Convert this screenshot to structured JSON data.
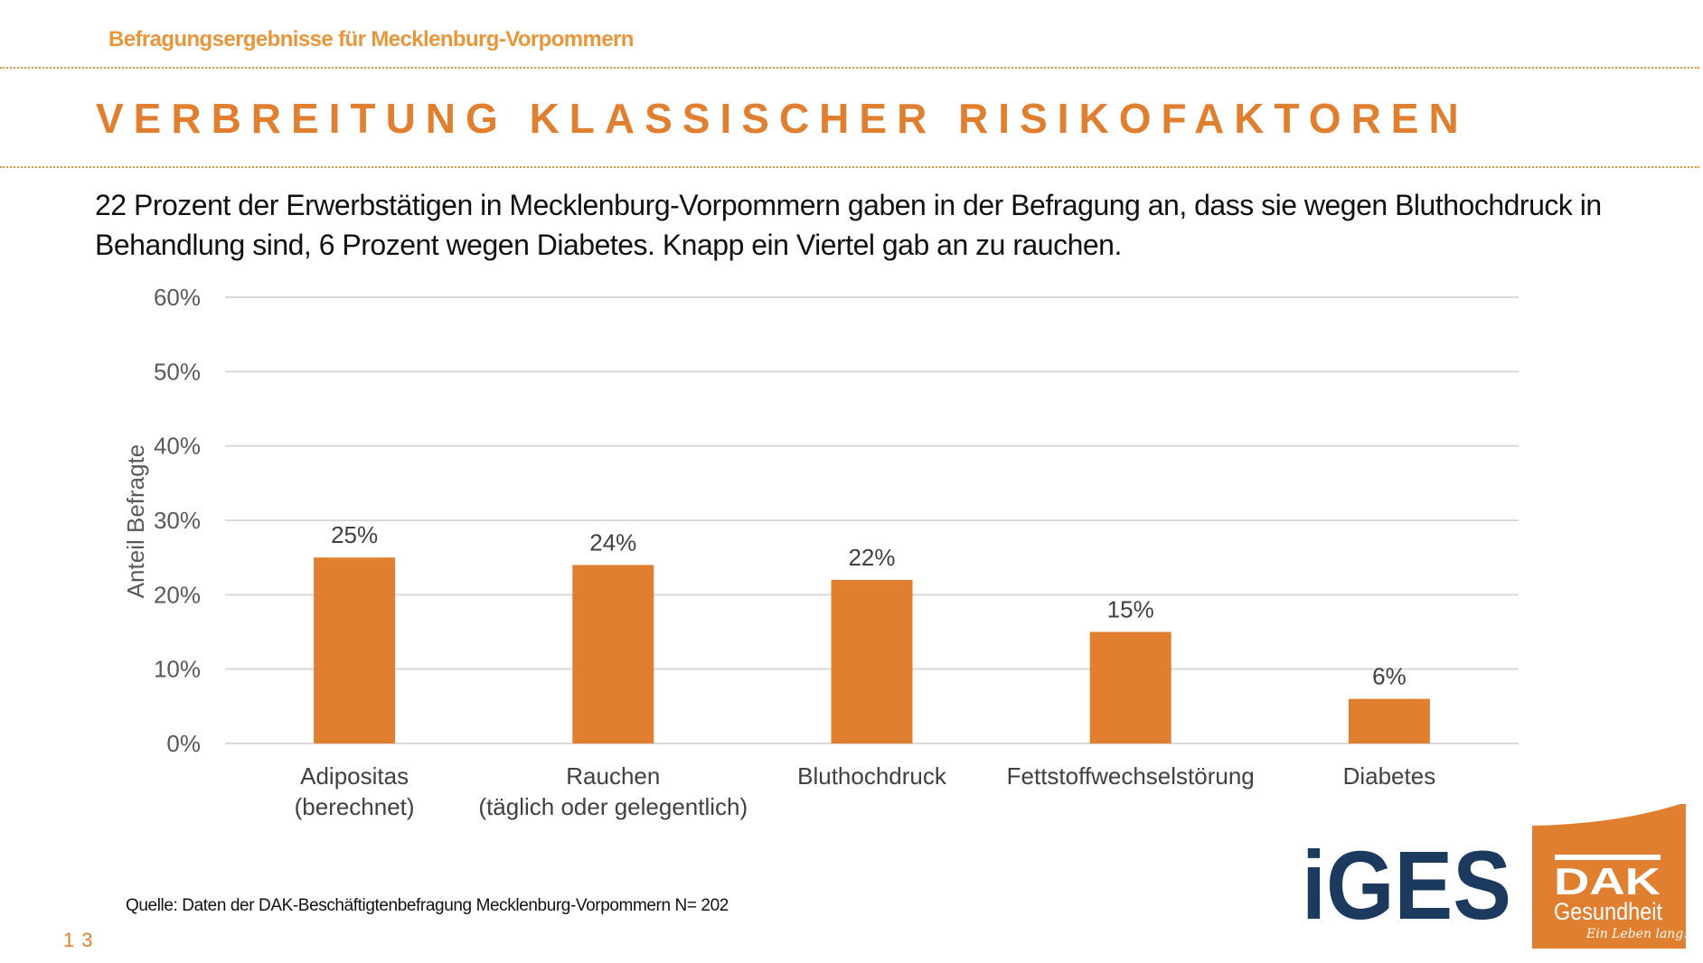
{
  "header": {
    "subtitle": "Befragungsergebnisse für Mecklenburg-Vorpommern",
    "title": "VERBREITUNG KLASSISCHER RISIKOFAKTOREN"
  },
  "body_text": "22 Prozent der Erwerbstätigen in Mecklenburg-Vorpommern gaben in der Befragung an, dass sie wegen Bluthochdruck in Behandlung sind, 6 Prozent wegen Diabetes. Knapp ein Viertel gab an zu rauchen.",
  "chart_data": {
    "type": "bar",
    "categories": [
      [
        "Adipositas",
        "(berechnet)"
      ],
      [
        "Rauchen",
        "(täglich oder gelegentlich)"
      ],
      [
        "Bluthochdruck"
      ],
      [
        "Fettstoffwechselstörung"
      ],
      [
        "Diabetes"
      ]
    ],
    "values": [
      25,
      24,
      22,
      15,
      6
    ],
    "data_labels": [
      "25%",
      "24%",
      "22%",
      "15%",
      "6%"
    ],
    "ylabel": "Anteil Befragte",
    "ylim": [
      0,
      60
    ],
    "yticks": [
      0,
      10,
      20,
      30,
      40,
      50,
      60
    ],
    "ytick_labels": [
      "0%",
      "10%",
      "20%",
      "30%",
      "40%",
      "50%",
      "60%"
    ],
    "grid": true,
    "bar_color": "#E07F30"
  },
  "source": "Quelle: Daten der DAK-Beschäftigtenbefragung Mecklenburg-Vorpommern N= 202",
  "page_number": "13",
  "logos": {
    "iges": "iGES",
    "dak": "DAK",
    "dak_sub": "Gesundheit",
    "dak_tagline": "Ein Leben lang."
  },
  "colors": {
    "accent": "#E07F30",
    "iges_blue": "#1C3A5E"
  }
}
